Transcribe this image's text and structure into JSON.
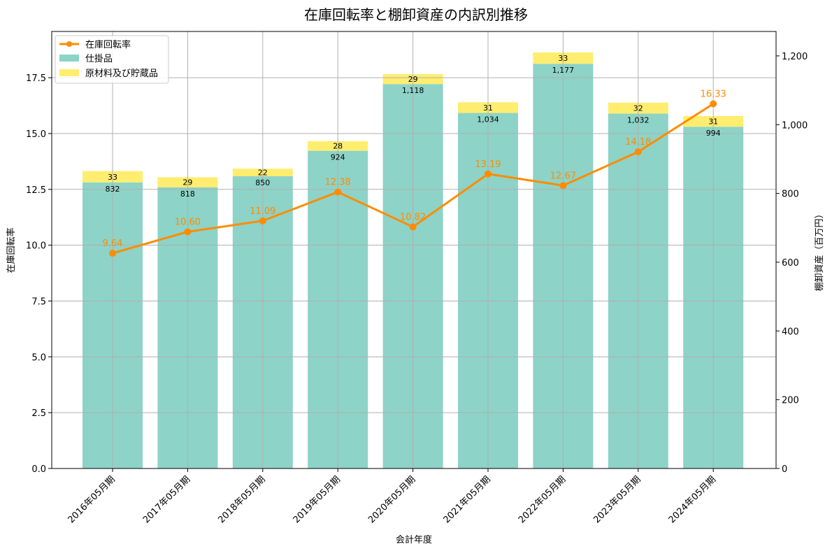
{
  "chart_data": {
    "type": "bar",
    "title": "在庫回転率と棚卸資産の内訳別推移",
    "xlabel": "会計年度",
    "ylabel": "在庫回転率",
    "y2label": "棚卸資産（百万円）",
    "categories": [
      "2016年05月期",
      "2017年05月期",
      "2018年05月期",
      "2019年05月期",
      "2020年05月期",
      "2021年05月期",
      "2022年05月期",
      "2023年05月期",
      "2024年05月期"
    ],
    "series": [
      {
        "name": "仕掛品",
        "type": "bar",
        "axis": "right",
        "color": "#8dd3c7",
        "values": [
          832,
          818,
          850,
          924,
          1118,
          1034,
          1177,
          1032,
          994
        ],
        "labels": [
          "832",
          "818",
          "850",
          "924",
          "1,118",
          "1,034",
          "1,177",
          "1,032",
          "994"
        ]
      },
      {
        "name": "原材料及び貯蔵品",
        "type": "bar",
        "axis": "right",
        "stacked": true,
        "color": "#ffed6f",
        "values": [
          33,
          29,
          22,
          28,
          29,
          31,
          33,
          32,
          31
        ],
        "labels": [
          "33",
          "29",
          "22",
          "28",
          "29",
          "31",
          "33",
          "32",
          "31"
        ]
      },
      {
        "name": "在庫回転率",
        "type": "line",
        "axis": "left",
        "color": "#ff8c00",
        "values": [
          9.64,
          10.6,
          11.09,
          12.38,
          10.82,
          13.19,
          12.67,
          14.18,
          16.33
        ],
        "labels": [
          "9.64",
          "10.60",
          "11.09",
          "12.38",
          "10.82",
          "13.19",
          "12.67",
          "14.18",
          "16.33"
        ]
      }
    ],
    "ylim": [
      0,
      19.57
    ],
    "y2lim": [
      0,
      1271
    ],
    "yticks": [
      "0.0",
      "2.5",
      "5.0",
      "7.5",
      "10.0",
      "12.5",
      "15.0",
      "17.5"
    ],
    "ytick_values": [
      0,
      2.5,
      5,
      7.5,
      10,
      12.5,
      15,
      17.5
    ],
    "y2ticks": [
      "0",
      "200",
      "400",
      "600",
      "800",
      "1,000",
      "1,200"
    ],
    "y2tick_values": [
      0,
      200,
      400,
      600,
      800,
      1000,
      1200
    ],
    "grid": true,
    "legend": "top-left"
  }
}
